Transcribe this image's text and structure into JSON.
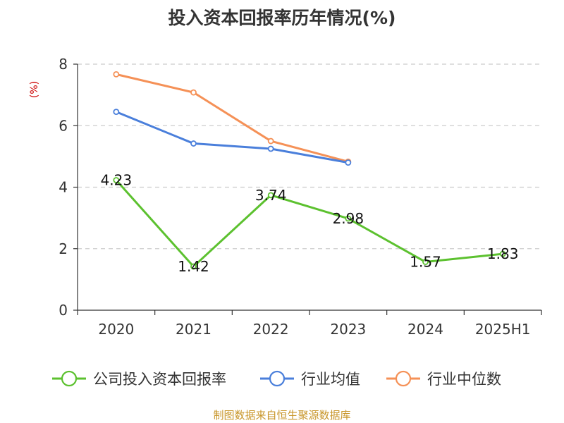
{
  "colors": {
    "company": "#5cc12f",
    "industry_avg": "#4a7fdb",
    "industry_median": "#f59157",
    "unit": "#cc0000",
    "source": "#c8962a",
    "grid": "#cccccc",
    "axis": "#333333"
  },
  "source_text": "制图数据来自恒生聚源数据库",
  "chart_data": {
    "type": "line",
    "title": "投入资本回报率历年情况(%)",
    "ylabel": "(%)",
    "xlabel": "",
    "categories": [
      "2020",
      "2021",
      "2022",
      "2023",
      "2024",
      "2025H1"
    ],
    "ylim": [
      0,
      8
    ],
    "yticks": [
      0,
      2,
      4,
      6,
      8
    ],
    "grid": true,
    "legend_position": "bottom",
    "series": [
      {
        "name": "公司投入资本回报率",
        "values": [
          4.23,
          1.42,
          3.74,
          2.98,
          1.57,
          1.83
        ],
        "data_labels": [
          "4.23",
          "1.42",
          "3.74",
          "2.98",
          "1.57",
          "1.83"
        ]
      },
      {
        "name": "行业均值",
        "values": [
          6.45,
          5.42,
          5.25,
          4.8,
          null,
          null
        ]
      },
      {
        "name": "行业中位数",
        "values": [
          7.67,
          7.08,
          5.5,
          4.83,
          null,
          null
        ]
      }
    ]
  }
}
